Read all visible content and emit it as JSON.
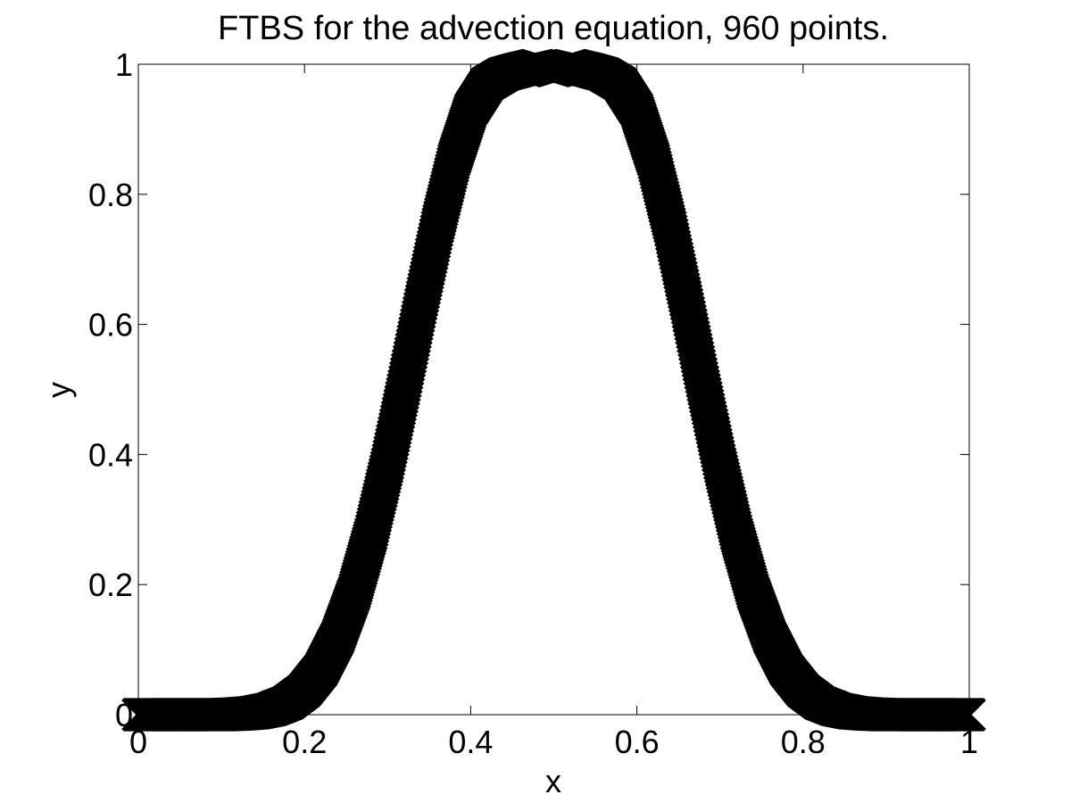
{
  "chart_data": {
    "type": "scatter",
    "title": "FTBS for the advection equation, 960 points.",
    "xlabel": "x",
    "ylabel": "y",
    "xlim": [
      0,
      1
    ],
    "ylim": [
      0,
      1
    ],
    "xticks": [
      0,
      0.2,
      0.4,
      0.6,
      0.8,
      1
    ],
    "yticks": [
      0,
      0.2,
      0.4,
      0.6,
      0.8,
      1
    ],
    "xtick_labels": [
      "0",
      "0.2",
      "0.4",
      "0.6",
      "0.8",
      "1"
    ],
    "ytick_labels": [
      "0",
      "0.2",
      "0.4",
      "0.6",
      "0.8",
      "1"
    ],
    "grid": false,
    "marker": "x",
    "color": "#000000",
    "series": [
      {
        "x": [
          0,
          0.02,
          0.04,
          0.06,
          0.08,
          0.1,
          0.12,
          0.14,
          0.16,
          0.18,
          0.2,
          0.22,
          0.24,
          0.26,
          0.28,
          0.3,
          0.32,
          0.34,
          0.36,
          0.38,
          0.4,
          0.42,
          0.44,
          0.46,
          0.48,
          0.5,
          0.52,
          0.54,
          0.56,
          0.58,
          0.6,
          0.62,
          0.64,
          0.66,
          0.68,
          0.7,
          0.72,
          0.74,
          0.76,
          0.78,
          0.8,
          0.82,
          0.84,
          0.86,
          0.88,
          0.9,
          0.92,
          0.94,
          0.96,
          0.98,
          1
        ],
        "values": [
          0.0,
          0.0,
          0.0,
          0.0,
          0.0,
          0.0,
          0.001,
          0.003,
          0.008,
          0.018,
          0.037,
          0.069,
          0.119,
          0.188,
          0.278,
          0.386,
          0.506,
          0.631,
          0.75,
          0.853,
          0.93,
          0.97,
          0.985,
          0.992,
          0.998,
          0.99,
          0.998,
          0.992,
          0.985,
          0.97,
          0.93,
          0.853,
          0.75,
          0.631,
          0.506,
          0.386,
          0.278,
          0.188,
          0.119,
          0.069,
          0.037,
          0.018,
          0.008,
          0.003,
          0.001,
          0.0,
          0.0,
          0.0,
          0.0,
          0.0,
          0.0
        ]
      }
    ]
  }
}
